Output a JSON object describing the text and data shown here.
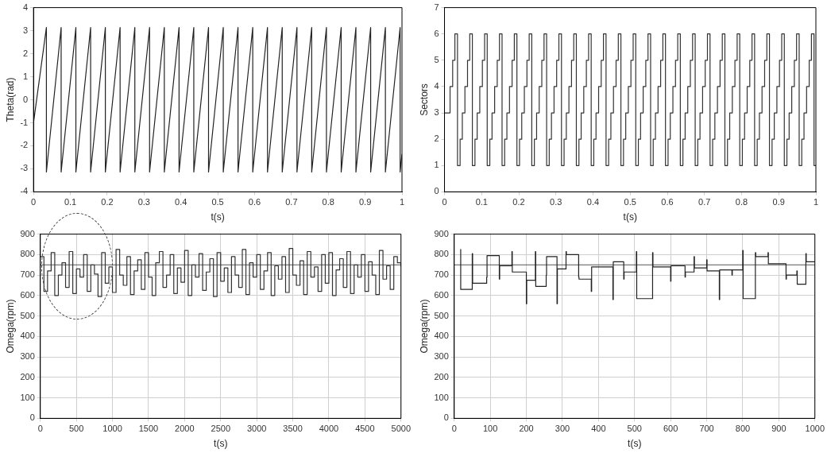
{
  "chart_data": [
    {
      "type": "line",
      "xlabel": "t(s)",
      "ylabel": "Theta(rad)",
      "xlim": [
        0,
        1
      ],
      "ylim": [
        -4,
        4
      ],
      "xticks": [
        0,
        0.1,
        0.2,
        0.3,
        0.4,
        0.5,
        0.6,
        0.7,
        0.8,
        0.9,
        1
      ],
      "yticks": [
        -4,
        -3,
        -2,
        -1,
        0,
        1,
        2,
        3,
        4
      ],
      "series": [
        {
          "color": "#222222",
          "x": [
            0,
            0.035,
            0.035,
            0.075,
            0.075,
            0.115,
            0.115,
            0.155,
            0.155,
            0.195,
            0.195,
            0.235,
            0.235,
            0.275,
            0.275,
            0.315,
            0.315,
            0.355,
            0.355,
            0.395,
            0.395,
            0.435,
            0.435,
            0.475,
            0.475,
            0.515,
            0.515,
            0.555,
            0.555,
            0.595,
            0.595,
            0.635,
            0.635,
            0.675,
            0.675,
            0.715,
            0.715,
            0.755,
            0.755,
            0.795,
            0.795,
            0.835,
            0.835,
            0.875,
            0.875,
            0.915,
            0.915,
            0.955,
            0.955,
            0.995,
            0.995,
            1
          ],
          "values": [
            -1,
            3.14,
            -3.14,
            3.14,
            -3.14,
            3.14,
            -3.14,
            3.14,
            -3.14,
            3.14,
            -3.14,
            3.14,
            -3.14,
            3.14,
            -3.14,
            3.14,
            -3.14,
            3.14,
            -3.14,
            3.14,
            -3.14,
            3.14,
            -3.14,
            3.14,
            -3.14,
            3.14,
            -3.14,
            3.14,
            -3.14,
            3.14,
            -3.14,
            3.14,
            -3.14,
            3.14,
            -3.14,
            3.14,
            -3.14,
            3.14,
            -3.14,
            3.14,
            -3.14,
            3.14,
            -3.14,
            3.14,
            -3.14,
            3.14,
            -3.14,
            3.14,
            -3.14,
            3.14,
            -3.14,
            -2.36
          ]
        }
      ]
    },
    {
      "type": "step",
      "xlabel": "t(s)",
      "ylabel": "Sectors",
      "xlim": [
        0,
        1
      ],
      "ylim": [
        0,
        7
      ],
      "xticks": [
        0,
        0.1,
        0.2,
        0.3,
        0.4,
        0.5,
        0.6,
        0.7,
        0.8,
        0.9,
        1
      ],
      "yticks": [
        0,
        1,
        2,
        3,
        4,
        5,
        6,
        7
      ],
      "series": [
        {
          "color": "#333333",
          "x": [
            0,
            0.015,
            0.022,
            0.028,
            0.035,
            0.042,
            0.048,
            0.055,
            0.062,
            0.068,
            0.075,
            0.082,
            0.088,
            0.095,
            0.102,
            0.108,
            0.115,
            0.122,
            0.128,
            0.135,
            0.142,
            0.148,
            0.155,
            0.162,
            0.168,
            0.175,
            0.182,
            0.188,
            0.195,
            0.202,
            0.208,
            0.215,
            0.222,
            0.228,
            0.235,
            0.242,
            0.248,
            0.255,
            0.262,
            0.268,
            0.275,
            0.282,
            0.288,
            0.295,
            0.302,
            0.308,
            0.315,
            0.322,
            0.328,
            0.335,
            0.342,
            0.348,
            0.355,
            0.362,
            0.368,
            0.375,
            0.382,
            0.388,
            0.395,
            0.402,
            0.408,
            0.415,
            0.422,
            0.428,
            0.435,
            0.442,
            0.448,
            0.455,
            0.462,
            0.468,
            0.475,
            0.482,
            0.488,
            0.495,
            0.502,
            0.508,
            0.515,
            0.522,
            0.528,
            0.535,
            0.542,
            0.548,
            0.555,
            0.562,
            0.568,
            0.575,
            0.582,
            0.588,
            0.595,
            0.602,
            0.608,
            0.615,
            0.622,
            0.628,
            0.635,
            0.642,
            0.648,
            0.655,
            0.662,
            0.668,
            0.675,
            0.682,
            0.688,
            0.695,
            0.702,
            0.708,
            0.715,
            0.722,
            0.728,
            0.735,
            0.742,
            0.748,
            0.755,
            0.762,
            0.768,
            0.775,
            0.782,
            0.788,
            0.795,
            0.802,
            0.808,
            0.815,
            0.822,
            0.828,
            0.835,
            0.842,
            0.848,
            0.855,
            0.862,
            0.868,
            0.875,
            0.882,
            0.888,
            0.895,
            0.902,
            0.908,
            0.915,
            0.922,
            0.928,
            0.935,
            0.942,
            0.948,
            0.955,
            0.962,
            0.968,
            0.975,
            0.982,
            0.988,
            0.995,
            1
          ],
          "values": [
            3,
            4,
            5,
            6,
            1,
            2,
            3,
            4,
            5,
            6,
            1,
            2,
            3,
            4,
            5,
            6,
            1,
            2,
            3,
            4,
            5,
            6,
            1,
            2,
            3,
            4,
            5,
            6,
            1,
            2,
            3,
            4,
            5,
            6,
            1,
            2,
            3,
            4,
            5,
            6,
            1,
            2,
            3,
            4,
            5,
            6,
            1,
            2,
            3,
            4,
            5,
            6,
            1,
            2,
            3,
            4,
            5,
            6,
            1,
            2,
            3,
            4,
            5,
            6,
            1,
            2,
            3,
            4,
            5,
            6,
            1,
            2,
            3,
            4,
            5,
            6,
            1,
            2,
            3,
            4,
            5,
            6,
            1,
            2,
            3,
            4,
            5,
            6,
            1,
            2,
            3,
            4,
            5,
            6,
            1,
            2,
            3,
            4,
            5,
            6,
            1,
            2,
            3,
            4,
            5,
            6,
            1,
            2,
            3,
            4,
            5,
            6,
            1,
            2,
            3,
            4,
            5,
            6,
            1,
            2,
            3,
            4,
            5,
            6,
            1,
            2,
            3,
            4,
            5,
            6,
            1,
            2,
            3,
            4,
            5,
            6,
            1,
            2,
            3,
            4,
            5,
            6,
            1,
            2,
            3,
            4,
            5,
            6,
            1,
            1
          ]
        }
      ]
    },
    {
      "type": "step",
      "xlabel": "t(s)",
      "ylabel": "Omega(rpm)",
      "grid": true,
      "xlim": [
        0,
        5000
      ],
      "ylim": [
        0,
        900
      ],
      "xticks": [
        0,
        500,
        1000,
        1500,
        2000,
        2500,
        3000,
        3500,
        4000,
        4500,
        5000
      ],
      "yticks": [
        0,
        100,
        200,
        300,
        400,
        500,
        600,
        700,
        800,
        900
      ],
      "ref_lines": [
        {
          "axis": "y",
          "value": 750,
          "color": "#555555"
        }
      ],
      "series": [
        {
          "color": "#333333",
          "x": [
            0,
            50,
            100,
            150,
            200,
            250,
            300,
            350,
            400,
            450,
            500,
            550,
            600,
            650,
            700,
            750,
            800,
            850,
            900,
            950,
            1000,
            1050,
            1100,
            1150,
            1200,
            1250,
            1300,
            1350,
            1400,
            1450,
            1500,
            1550,
            1600,
            1650,
            1700,
            1750,
            1800,
            1850,
            1900,
            1950,
            2000,
            2050,
            2100,
            2150,
            2200,
            2250,
            2300,
            2350,
            2400,
            2450,
            2500,
            2550,
            2600,
            2650,
            2700,
            2750,
            2800,
            2850,
            2900,
            2950,
            3000,
            3050,
            3100,
            3150,
            3200,
            3250,
            3300,
            3350,
            3400,
            3450,
            3500,
            3550,
            3600,
            3650,
            3700,
            3750,
            3800,
            3850,
            3900,
            3950,
            4000,
            4050,
            4100,
            4150,
            4200,
            4250,
            4300,
            4350,
            4400,
            4450,
            4500,
            4550,
            4600,
            4650,
            4700,
            4750,
            4800,
            4850,
            4900,
            4950,
            5000
          ],
          "values": [
            790,
            620,
            720,
            810,
            600,
            700,
            760,
            640,
            815,
            610,
            730,
            690,
            800,
            620,
            750,
            705,
            595,
            810,
            660,
            740,
            615,
            825,
            700,
            650,
            790,
            605,
            720,
            775,
            630,
            810,
            690,
            600,
            760,
            815,
            640,
            700,
            800,
            610,
            735,
            665,
            820,
            600,
            750,
            690,
            805,
            625,
            715,
            780,
            595,
            810,
            670,
            735,
            615,
            790,
            700,
            640,
            825,
            605,
            760,
            690,
            800,
            630,
            720,
            810,
            600,
            745,
            680,
            790,
            615,
            830,
            700,
            650,
            770,
            605,
            815,
            690,
            740,
            620,
            800,
            660,
            810,
            600,
            725,
            780,
            640,
            815,
            610,
            750,
            690,
            800,
            620,
            765,
            700,
            605,
            820,
            680,
            745,
            630,
            790,
            760,
            740
          ]
        }
      ]
    },
    {
      "type": "step",
      "xlabel": "t(s)",
      "ylabel": "Omega(rpm)",
      "grid": true,
      "xlim": [
        0,
        1000
      ],
      "ylim": [
        0,
        900
      ],
      "xticks": [
        0,
        100,
        200,
        300,
        400,
        500,
        600,
        700,
        800,
        900,
        1000
      ],
      "yticks": [
        0,
        100,
        200,
        300,
        400,
        500,
        600,
        700,
        800,
        900
      ],
      "ref_lines": [
        {
          "axis": "y",
          "value": 750,
          "color": "#555555"
        }
      ],
      "series": [
        {
          "color": "#222222",
          "x": [
            17,
            18,
            50,
            51,
            90,
            91,
            125,
            126,
            160,
            161,
            200,
            201,
            225,
            226,
            255,
            256,
            285,
            286,
            310,
            311,
            345,
            346,
            380,
            381,
            440,
            441,
            470,
            471,
            505,
            506,
            550,
            551,
            600,
            601,
            640,
            641,
            665,
            666,
            700,
            701,
            735,
            736,
            770,
            771,
            800,
            801,
            835,
            836,
            870,
            871,
            920,
            921,
            950,
            951,
            975,
            976,
            1000
          ],
          "values": [
            825,
            630,
            805,
            660,
            690,
            795,
            680,
            745,
            815,
            715,
            560,
            675,
            815,
            645,
            700,
            790,
            560,
            730,
            815,
            800,
            690,
            680,
            620,
            740,
            580,
            765,
            680,
            715,
            815,
            585,
            810,
            740,
            670,
            745,
            690,
            715,
            790,
            735,
            775,
            720,
            580,
            725,
            700,
            725,
            820,
            585,
            810,
            790,
            810,
            755,
            680,
            700,
            720,
            655,
            805,
            765,
            765
          ]
        }
      ]
    }
  ]
}
